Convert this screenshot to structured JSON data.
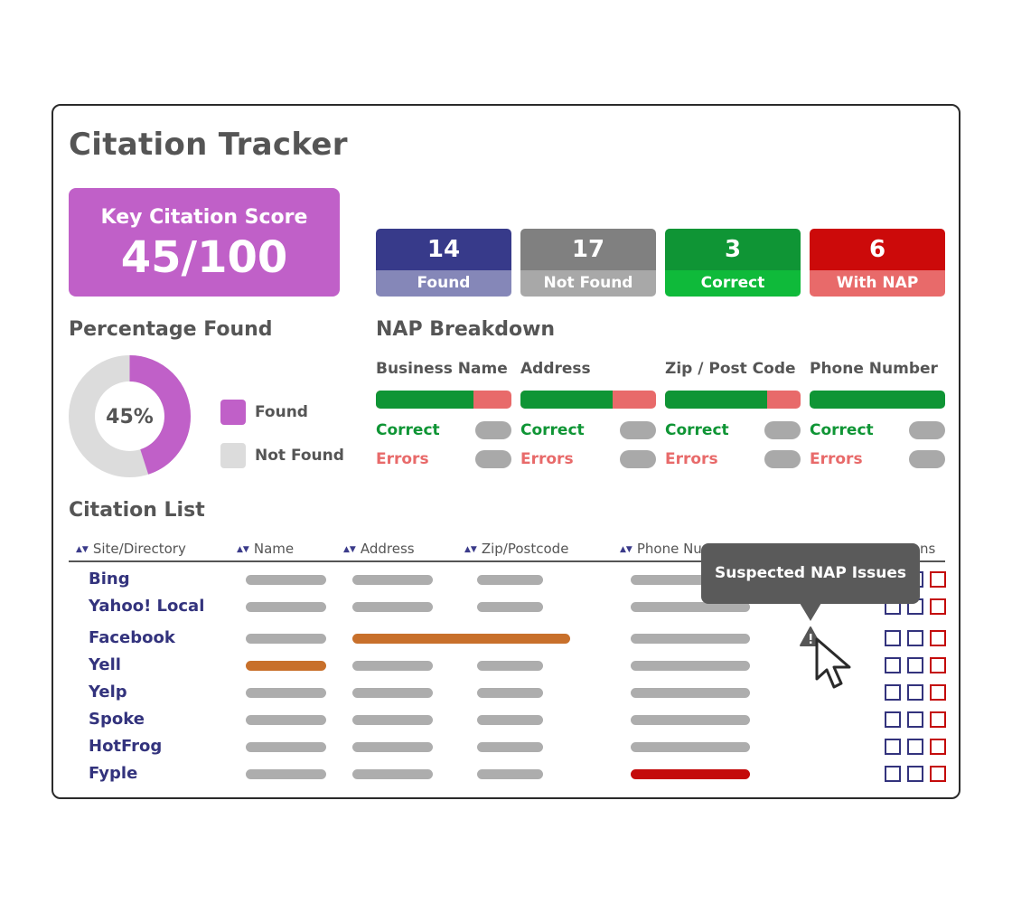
{
  "title": "Citation Tracker",
  "score": {
    "label": "Key Citation Score",
    "value": "45/100",
    "color": "#c060c8"
  },
  "stats": [
    {
      "num": "14",
      "caption": "Found",
      "top": "#373a8a",
      "bottom": "#8587b8"
    },
    {
      "num": "17",
      "caption": "Not Found",
      "top": "#808080",
      "bottom": "#a8a8a8"
    },
    {
      "num": "3",
      "caption": "Correct",
      "top": "#0f9535",
      "bottom": "#0fba3a"
    },
    {
      "num": "6",
      "caption": "With NAP Errors",
      "top": "#cc0a0a",
      "bottom": "#e86a6a"
    }
  ],
  "percentage": {
    "heading": "Percentage Found",
    "value_label": "45%",
    "found_fraction": 0.45,
    "found_color": "#c060c8",
    "notfound_color": "#dcdcdc",
    "legend_found": "Found",
    "legend_not_found": "Not Found"
  },
  "nap": {
    "heading": "NAP Breakdown",
    "correct_label": "Correct",
    "errors_label": "Errors",
    "columns": [
      {
        "name": "Business Name",
        "correct_fraction": 0.72
      },
      {
        "name": "Address",
        "correct_fraction": 0.68
      },
      {
        "name": "Zip / Post Code",
        "correct_fraction": 0.75
      },
      {
        "name": "Phone Number",
        "correct_fraction": 1.0
      }
    ]
  },
  "citations": {
    "heading": "Citation List",
    "columns": [
      "Site/Directory",
      "Name",
      "Address",
      "Zip/Postcode",
      "Phone Num",
      "ns"
    ],
    "rows": [
      {
        "site": "Bing",
        "name": "normal",
        "address": "normal",
        "zip": "normal",
        "phone": "normal"
      },
      {
        "site": "Yahoo! Local",
        "name": "normal",
        "address": "normal",
        "zip": "normal",
        "phone": "normal"
      },
      {
        "site": "Facebook",
        "name": "normal",
        "address": "issue-wide",
        "zip": "none",
        "phone": "normal"
      },
      {
        "site": "Yell",
        "name": "issue",
        "address": "normal",
        "zip": "normal",
        "phone": "normal"
      },
      {
        "site": "Yelp",
        "name": "normal",
        "address": "normal",
        "zip": "normal",
        "phone": "normal"
      },
      {
        "site": "Spoke",
        "name": "normal",
        "address": "normal",
        "zip": "normal",
        "phone": "normal"
      },
      {
        "site": "HotFrog",
        "name": "normal",
        "address": "normal",
        "zip": "normal",
        "phone": "normal"
      },
      {
        "site": "Fyple",
        "name": "normal",
        "address": "normal",
        "zip": "normal",
        "phone": "error"
      }
    ]
  },
  "tooltip": {
    "text": "Suspected NAP Issues"
  },
  "icons": {
    "warning": "warning-icon",
    "cursor": "mouse-pointer-icon",
    "sort": "sort-arrows-icon"
  }
}
